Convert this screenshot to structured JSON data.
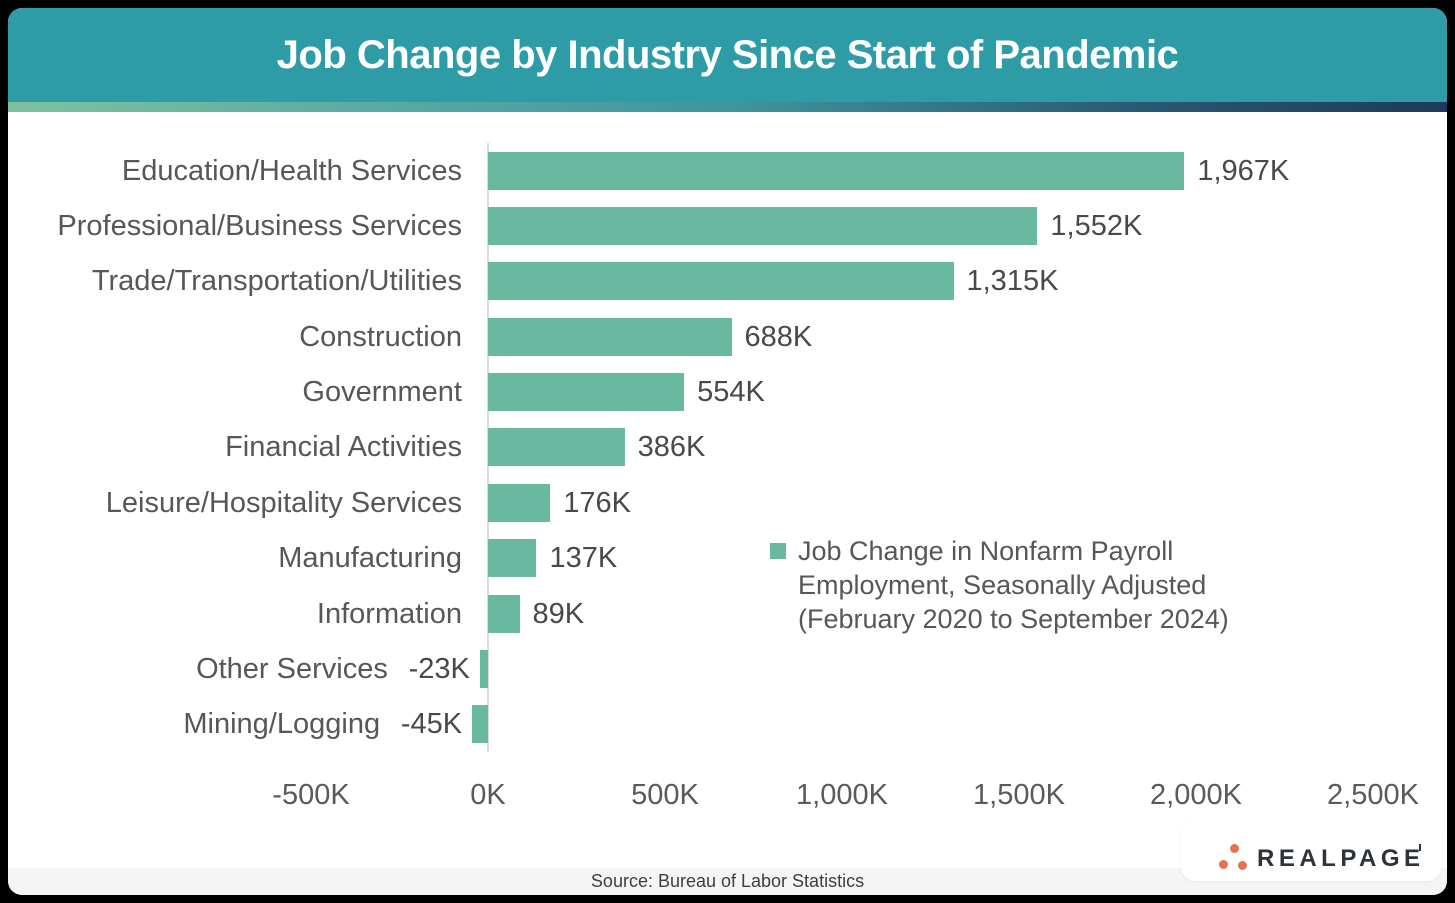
{
  "header": {
    "title": "Job Change by Industry Since Start of Pandemic"
  },
  "chart_data": {
    "type": "bar",
    "orientation": "horizontal",
    "title": "Job Change by Industry Since Start of Pandemic",
    "units": "thousands of jobs (K)",
    "categories": [
      "Education/Health Services",
      "Professional/Business Services",
      "Trade/Transportation/Utilities",
      "Construction",
      "Government",
      "Financial Activities",
      "Leisure/Hospitality Services",
      "Manufacturing",
      "Information",
      "Other Services",
      "Mining/Logging"
    ],
    "values": [
      1967,
      1552,
      1315,
      688,
      554,
      386,
      176,
      137,
      89,
      -23,
      -45
    ],
    "value_labels": [
      "1,967K",
      "1,552K",
      "1,315K",
      "688K",
      "554K",
      "386K",
      "176K",
      "137K",
      "89K",
      "-23K",
      "-45K"
    ],
    "x_ticks": [
      "-500K",
      "0K",
      "500K",
      "1,000K",
      "1,500K",
      "2,000K",
      "2,500K"
    ],
    "x_tick_values": [
      -500,
      0,
      500,
      1000,
      1500,
      2000,
      2500
    ],
    "xlim": [
      -500,
      2500
    ],
    "grid": false,
    "legend": "Job Change in Nonfarm Payroll\nEmployment, Seasonally Adjusted\n(February 2020 to September 2024)",
    "legend_position": "center-right",
    "bar_color": "#69b9a0"
  },
  "footer": {
    "source": "Source: Bureau of Labor Statistics"
  },
  "logo": {
    "text": "REALPAGE",
    "dot_color": "#e8714d",
    "text_color": "#2e3239"
  },
  "colors": {
    "header_background": "#2e9ca7",
    "header_title": "#ffffff",
    "gradient_left": "#7fc19e",
    "gradient_right": "#1e3a5b",
    "bar": "#69b9a0",
    "category_text": "#565759",
    "value_text": "#48494b",
    "page_background": "#000000"
  }
}
